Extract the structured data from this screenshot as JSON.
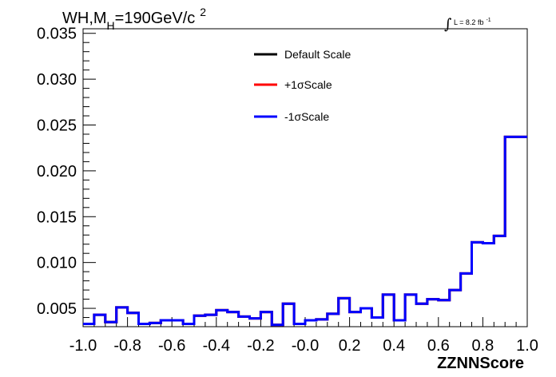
{
  "chart_data": {
    "type": "line",
    "title_parts": {
      "main": "WH,M",
      "sub": "H",
      "rest": "=190GeV/c",
      "sup": "2"
    },
    "lumi_label": {
      "symbol": "∫",
      "text": "L = 8.2 fb",
      "sup": "-1"
    },
    "xlabel": "ZZNNScore",
    "ylabel": "",
    "xlim": [
      -1.0,
      1.0
    ],
    "ylim": [
      0.003,
      0.0355
    ],
    "x_ticks": [
      "-1.0",
      "-0.8",
      "-0.6",
      "-0.4",
      "-0.2",
      "-0.0",
      "0.2",
      "0.4",
      "0.6",
      "0.8",
      "1.0"
    ],
    "x_tick_values": [
      -1.0,
      -0.8,
      -0.6,
      -0.4,
      -0.2,
      0.0,
      0.2,
      0.4,
      0.6,
      0.8,
      1.0
    ],
    "y_ticks": [
      "0.005",
      "0.010",
      "0.015",
      "0.020",
      "0.025",
      "0.030",
      "0.035"
    ],
    "y_tick_values": [
      0.005,
      0.01,
      0.015,
      0.02,
      0.025,
      0.03,
      0.035
    ],
    "legend_position": "top-center",
    "bin_edges": [
      -1.0,
      -0.95,
      -0.9,
      -0.85,
      -0.8,
      -0.75,
      -0.7,
      -0.65,
      -0.6,
      -0.55,
      -0.5,
      -0.45,
      -0.4,
      -0.35,
      -0.3,
      -0.25,
      -0.2,
      -0.15,
      -0.1,
      -0.05,
      0.0,
      0.05,
      0.1,
      0.15,
      0.2,
      0.25,
      0.3,
      0.35,
      0.4,
      0.45,
      0.5,
      0.55,
      0.6,
      0.65,
      0.7,
      0.75,
      0.8,
      0.85,
      0.9,
      0.95,
      1.0
    ],
    "series": [
      {
        "name": "Default Scale",
        "color": "#000000",
        "values": [
          0.0033,
          0.0043,
          0.0035,
          0.0051,
          0.0045,
          0.0033,
          0.0034,
          0.0037,
          0.0037,
          0.0033,
          0.0042,
          0.0043,
          0.0048,
          0.0046,
          0.0041,
          0.0039,
          0.0046,
          0.0032,
          0.0055,
          0.0033,
          0.0037,
          0.0038,
          0.0044,
          0.0061,
          0.0046,
          0.005,
          0.004,
          0.0065,
          0.0037,
          0.0065,
          0.0055,
          0.006,
          0.0059,
          0.007,
          0.0088,
          0.0122,
          0.0121,
          0.0129,
          0.0237,
          0.0237
        ]
      },
      {
        "name": "+1σScale",
        "color": "#ff0000",
        "values": [
          0.0033,
          0.0043,
          0.0035,
          0.0051,
          0.0045,
          0.0033,
          0.0034,
          0.0037,
          0.0037,
          0.0033,
          0.0042,
          0.0043,
          0.0048,
          0.0046,
          0.0041,
          0.0039,
          0.0046,
          0.0032,
          0.0055,
          0.0033,
          0.0037,
          0.0038,
          0.0044,
          0.0061,
          0.0046,
          0.005,
          0.004,
          0.0065,
          0.0037,
          0.0065,
          0.0055,
          0.006,
          0.0059,
          0.007,
          0.0088,
          0.0122,
          0.0121,
          0.0129,
          0.0237,
          0.0237
        ]
      },
      {
        "name": "-1σScale",
        "color": "#0000ff",
        "values": [
          0.0033,
          0.0043,
          0.0035,
          0.0051,
          0.0045,
          0.0033,
          0.0034,
          0.0037,
          0.0037,
          0.0033,
          0.0042,
          0.0043,
          0.0048,
          0.0046,
          0.0041,
          0.0039,
          0.0046,
          0.0032,
          0.0055,
          0.0033,
          0.0037,
          0.0038,
          0.0044,
          0.0061,
          0.0046,
          0.005,
          0.004,
          0.0065,
          0.0037,
          0.0065,
          0.0055,
          0.006,
          0.0059,
          0.007,
          0.0088,
          0.0122,
          0.0121,
          0.0129,
          0.0237,
          0.0237
        ]
      }
    ]
  }
}
